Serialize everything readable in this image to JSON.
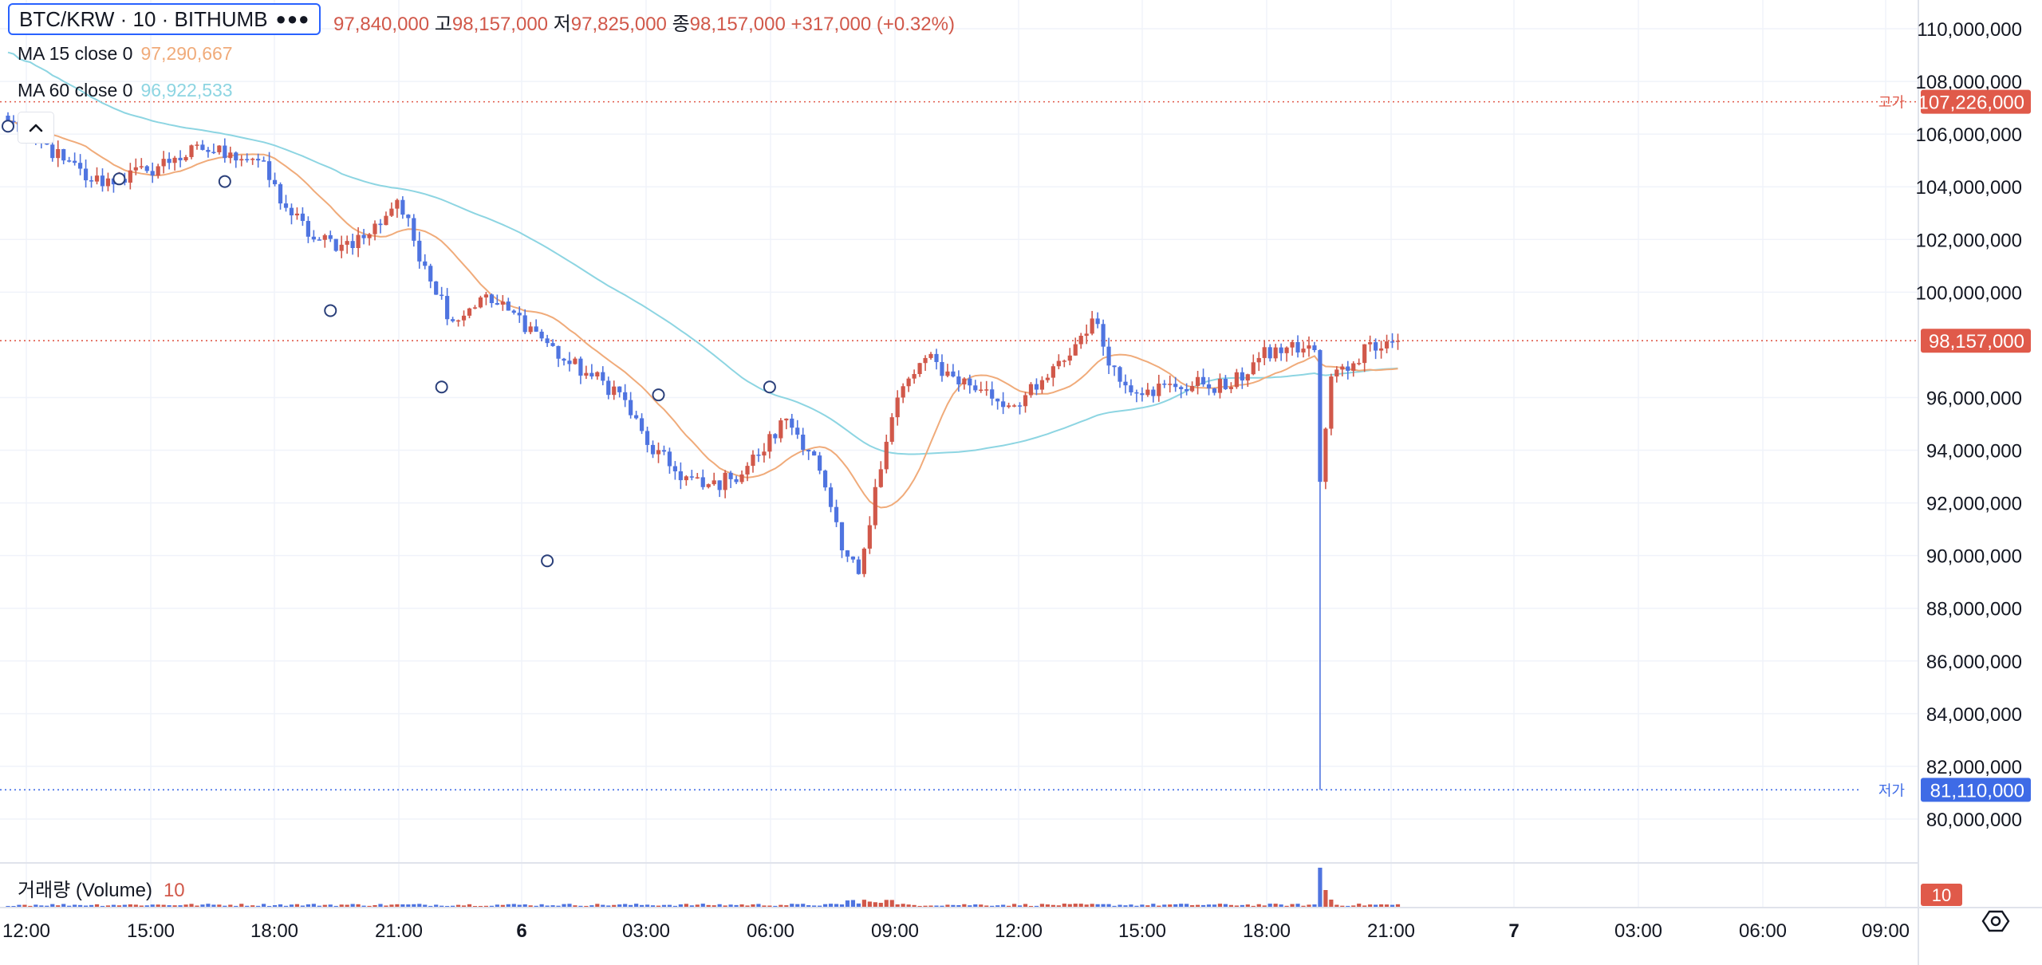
{
  "header": {
    "symbol": "BTC/KRW · 10 · BITHUMB",
    "more_icon": "more-dots-icon",
    "ohlc": {
      "open_value": "97,840,000",
      "high_label": "고",
      "high_value": "98,157,000",
      "low_label": "저",
      "low_value": "97,825,000",
      "close_label": "종",
      "close_value": "98,157,000",
      "change": "+317,000 (+0.32%)"
    }
  },
  "indicators": {
    "ma15": {
      "label": "MA 15 close 0",
      "value": "97,290,667",
      "color": "#f0ab7a"
    },
    "ma60": {
      "label": "MA 60 close 0",
      "value": "96,922,533",
      "color": "#8dd5e2"
    },
    "collapse_icon": "chevron-up-icon"
  },
  "volume": {
    "label": "거래량 (Volume)",
    "value": "10",
    "scale_value": "10"
  },
  "colors": {
    "up": "#d1584a",
    "down": "#4f74e0",
    "high_line": "#e05a4a",
    "low_line": "#3e6be6",
    "grid": "#f0f3fa"
  },
  "chart_data": {
    "type": "candlestick",
    "y_ticks": [
      "110,000,000",
      "108,000,000",
      "106,000,000",
      "104,000,000",
      "102,000,000",
      "100,000,000",
      "96,000,000",
      "94,000,000",
      "92,000,000",
      "90,000,000",
      "88,000,000",
      "86,000,000",
      "84,000,000",
      "82,000,000",
      "80,000,000"
    ],
    "y_tick_values": [
      110000000,
      108000000,
      106000000,
      104000000,
      102000000,
      100000000,
      96000000,
      94000000,
      92000000,
      90000000,
      88000000,
      86000000,
      84000000,
      82000000,
      80000000
    ],
    "ylim": [
      78500000,
      111000000
    ],
    "x_ticks": [
      "12:00",
      "15:00",
      "18:00",
      "21:00",
      "6",
      "03:00",
      "06:00",
      "09:00",
      "12:00",
      "15:00",
      "18:00",
      "21:00",
      "7",
      "03:00",
      "06:00",
      "09:00"
    ],
    "x_ticks_bold": [
      "6",
      "7"
    ],
    "high_marker": {
      "label": "고가",
      "value": 107226000,
      "text": "107,226,000"
    },
    "low_marker": {
      "label": "저가",
      "value": 81110000,
      "text": "81,110,000"
    },
    "last_price": {
      "value": 98157000,
      "text": "98,157,000"
    },
    "anchors": [
      [
        0,
        106500000
      ],
      [
        5,
        105800000
      ],
      [
        10,
        105000000
      ],
      [
        15,
        104200000
      ],
      [
        20,
        104300000
      ],
      [
        25,
        104600000
      ],
      [
        30,
        105100000
      ],
      [
        35,
        105400000
      ],
      [
        40,
        105300000
      ],
      [
        45,
        105000000
      ],
      [
        50,
        103200000
      ],
      [
        55,
        102000000
      ],
      [
        60,
        101800000
      ],
      [
        65,
        102200000
      ],
      [
        70,
        103500000
      ],
      [
        75,
        101000000
      ],
      [
        80,
        98900000
      ],
      [
        85,
        99800000
      ],
      [
        90,
        99300000
      ],
      [
        95,
        98500000
      ],
      [
        100,
        97400000
      ],
      [
        105,
        96800000
      ],
      [
        110,
        96200000
      ],
      [
        115,
        94200000
      ],
      [
        120,
        93200000
      ],
      [
        125,
        92600000
      ],
      [
        130,
        92900000
      ],
      [
        135,
        93800000
      ],
      [
        140,
        95200000
      ],
      [
        145,
        93800000
      ],
      [
        150,
        90200000
      ],
      [
        153,
        89300000
      ],
      [
        156,
        92600000
      ],
      [
        160,
        96000000
      ],
      [
        165,
        97500000
      ],
      [
        170,
        96800000
      ],
      [
        175,
        96300000
      ],
      [
        180,
        95700000
      ],
      [
        185,
        96300000
      ],
      [
        190,
        97400000
      ],
      [
        195,
        99000000
      ],
      [
        200,
        96600000
      ],
      [
        205,
        96300000
      ],
      [
        210,
        96400000
      ],
      [
        215,
        96500000
      ],
      [
        220,
        96400000
      ],
      [
        225,
        97500000
      ],
      [
        230,
        97900000
      ],
      [
        235,
        97800000
      ],
      [
        236,
        92800000
      ],
      [
        238,
        96800000
      ],
      [
        242,
        97300000
      ],
      [
        245,
        98100000
      ],
      [
        250,
        98157000
      ]
    ],
    "volume_spike_index": 236
  }
}
